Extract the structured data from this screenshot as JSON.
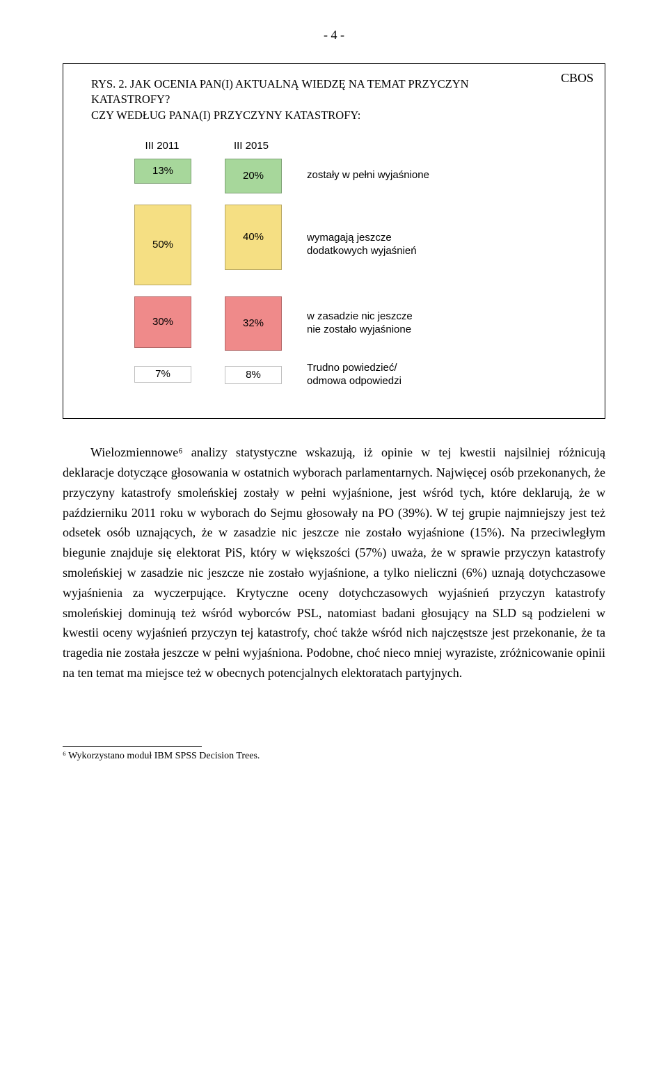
{
  "page_number": "- 4 -",
  "figure": {
    "cbos": "CBOS",
    "title_line1": "RYS. 2. JAK OCENIA PAN(I) AKTUALNĄ WIEDZĘ NA TEMAT PRZYCZYN KATASTROFY?",
    "title_line2": "CZY WEDŁUG PANA(I) PRZYCZYNY KATASTROFY:",
    "col1_header": "III 2011",
    "col2_header": "III 2015",
    "rows": [
      {
        "v1": "13%",
        "h1": 34,
        "c1": "#a7d79b",
        "v2": "20%",
        "h2": 48,
        "c2": "#a7d79b",
        "label": "zostały w pełni wyjaśnione"
      },
      {
        "v1": "50%",
        "h1": 114,
        "c1": "#f5df83",
        "v2": "40%",
        "h2": 92,
        "c2": "#f5df83",
        "label": "wymagają jeszcze\ndodatkowych wyjaśnień"
      },
      {
        "v1": "30%",
        "h1": 72,
        "c1": "#ef8a8a",
        "v2": "32%",
        "h2": 76,
        "c2": "#ef8a8a",
        "label": "w zasadzie nic jeszcze\nnie zostało wyjaśnione"
      },
      {
        "v1": "7%",
        "h1": 22,
        "c1": "#ffffff",
        "v2": "8%",
        "h2": 24,
        "c2": "#ffffff",
        "label": "Trudno powiedzieć/\nodmowa odpowiedzi"
      }
    ],
    "label_font": "Arial",
    "label_fontsize": 15,
    "border_color": "#000000"
  },
  "para": "Wielozmiennowe⁶ analizy statystyczne wskazują, iż opinie w tej kwestii najsilniej różnicują deklaracje dotyczące głosowania w ostatnich wyborach parlamentarnych. Najwięcej osób przekonanych, że przyczyny katastrofy smoleńskiej zostały w pełni wyjaśnione, jest wśród tych, które deklarują, że w październiku 2011 roku w wyborach do Sejmu głosowały na PO (39%). W tej grupie najmniejszy jest też odsetek osób uznających, że w zasadzie nic jeszcze nie zostało wyjaśnione (15%). Na przeciwległym biegunie znajduje się elektorat PiS, który w większości (57%) uważa, że w sprawie przyczyn katastrofy smoleńskiej w zasadzie nic jeszcze nie zostało wyjaśnione, a tylko nieliczni (6%) uznają dotychczasowe wyjaśnienia za wyczerpujące. Krytyczne oceny dotychczasowych wyjaśnień przyczyn katastrofy smoleńskiej dominują też wśród wyborców PSL, natomiast badani głosujący na SLD są podzieleni w kwestii oceny wyjaśnień przyczyn tej katastrofy, choć także wśród nich najczęstsze jest przekonanie, że ta tragedia nie została jeszcze w pełni wyjaśniona. Podobne, choć nieco mniej wyraziste, zróżnicowanie opinii na ten temat ma miejsce też w obecnych potencjalnych elektoratach partyjnych.",
  "footnote": "⁶ Wykorzystano moduł IBM SPSS Decision Trees."
}
